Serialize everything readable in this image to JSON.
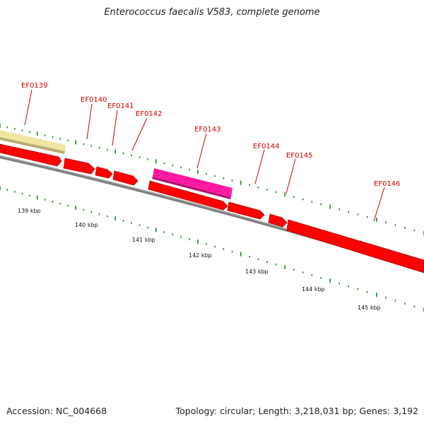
{
  "title": "Enterococcus faecalis V583, complete genome",
  "footer": {
    "accession": "Accession: NC_004668",
    "summary": "Topology: circular; Length: 3,218,031 bp; Genes: 3,192"
  },
  "colors": {
    "cds": "#ff0000",
    "cds_outline": "#b00000",
    "backbone": "#808080",
    "label": "#cc0000",
    "tick": "#1f8a1f",
    "feature_pale": "#f0e6a0",
    "feature_pink": "#ff1aa0"
  },
  "genes": [
    {
      "name": "EF0139"
    },
    {
      "name": "EF0140"
    },
    {
      "name": "EF0141"
    },
    {
      "name": "EF0142"
    },
    {
      "name": "EF0143"
    },
    {
      "name": "EF0144"
    },
    {
      "name": "EF0145"
    },
    {
      "name": "EF0146"
    }
  ],
  "scale_labels": [
    "139 kbp",
    "140 kbp",
    "141 kbp",
    "142 kbp",
    "143 kbp",
    "144 kbp",
    "145 kbp"
  ]
}
